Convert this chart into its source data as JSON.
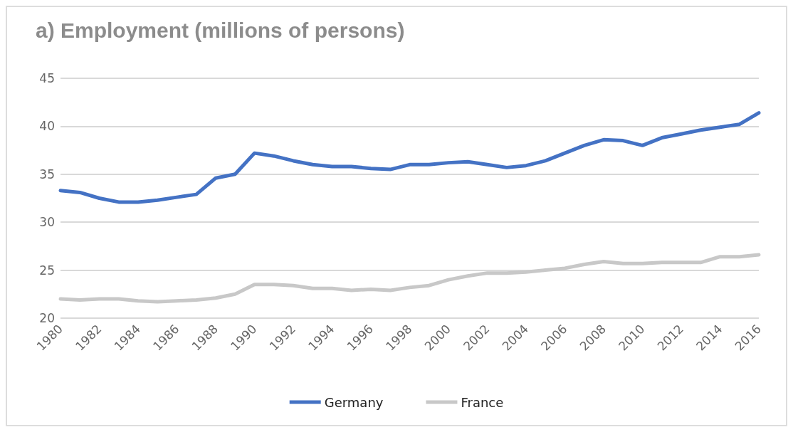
{
  "chart_data": {
    "type": "line",
    "title": "a) Employment (millions of persons)",
    "categories": [
      "1980",
      null,
      "1982",
      null,
      "1984",
      null,
      "1986",
      null,
      "1988",
      null,
      "1990",
      null,
      "1992",
      null,
      "1994",
      null,
      "1996",
      null,
      "1998",
      null,
      "2000",
      null,
      "2002",
      null,
      "2004",
      null,
      "2006",
      null,
      "2008",
      null,
      "2010",
      null,
      "2012",
      null,
      "2014",
      null,
      "2016"
    ],
    "series": [
      {
        "name": "Germany",
        "color": "#4472c4",
        "values": [
          33.3,
          33.1,
          32.5,
          32.1,
          32.1,
          32.3,
          32.6,
          32.9,
          34.6,
          35.0,
          37.2,
          36.9,
          36.4,
          36.0,
          35.8,
          35.8,
          35.6,
          35.5,
          36.0,
          36.0,
          36.2,
          36.3,
          36.0,
          35.7,
          35.9,
          36.4,
          37.2,
          38.0,
          38.6,
          38.5,
          38.0,
          38.8,
          39.2,
          39.6,
          39.9,
          40.2,
          41.4
        ]
      },
      {
        "name": "France",
        "color": "#c8c8c8",
        "values": [
          22.0,
          21.9,
          22.0,
          22.0,
          21.8,
          21.7,
          21.8,
          21.9,
          22.1,
          22.5,
          23.5,
          23.5,
          23.4,
          23.1,
          23.1,
          22.9,
          23.0,
          22.9,
          23.2,
          23.4,
          24.0,
          24.4,
          24.7,
          24.7,
          24.8,
          25.0,
          25.2,
          25.6,
          25.9,
          25.7,
          25.7,
          25.8,
          25.8,
          25.8,
          26.4,
          26.4,
          26.6
        ]
      }
    ],
    "ylim": [
      20,
      45
    ],
    "yticks": [
      20,
      25,
      30,
      35,
      40,
      45
    ],
    "grid": "y",
    "legend": "bottom",
    "marker": "none",
    "line_style": "solid"
  }
}
